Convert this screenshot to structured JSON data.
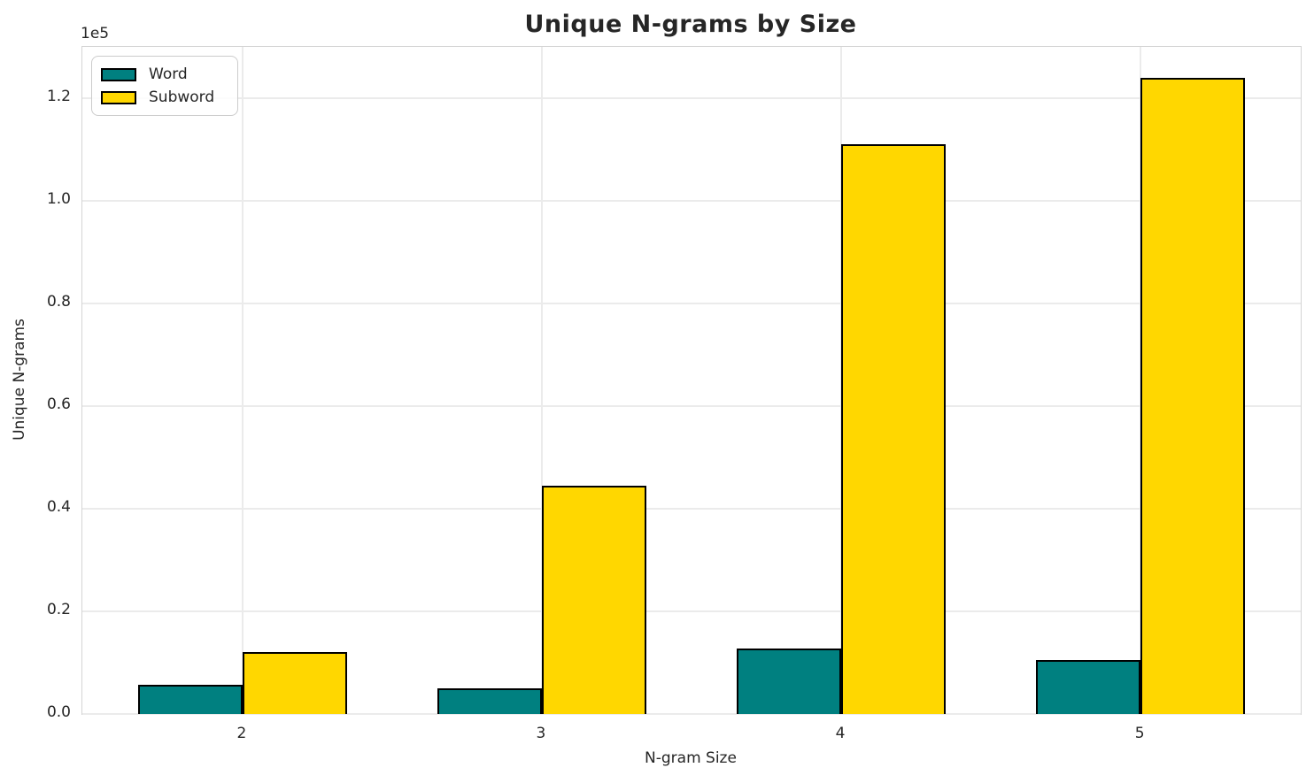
{
  "figure": {
    "background": "#ffffff",
    "text_color": "#262626",
    "spine_color": "#d4d4d4",
    "gridline_color": "#ebebeb"
  },
  "chart_data": {
    "type": "bar",
    "title": "Unique N-grams by Size",
    "xlabel": "N-gram Size",
    "ylabel": "Unique N-grams",
    "y_offset_text": "1e5",
    "categories": [
      "2",
      "3",
      "4",
      "5"
    ],
    "series": [
      {
        "name": "Word",
        "color": "#008080",
        "values": [
          5700,
          5000,
          12700,
          10500
        ]
      },
      {
        "name": "Subword",
        "color": "#FFD700",
        "values": [
          12100,
          44400,
          111000,
          124000
        ]
      }
    ],
    "bar_edge_color": "#000000",
    "bar_width": 0.35,
    "xlim": [
      1.465,
      5.535
    ],
    "ylim": [
      0,
      130000
    ],
    "yticks": [
      0,
      20000,
      40000,
      60000,
      80000,
      100000,
      120000
    ],
    "ytick_labels": [
      "0.0",
      "0.2",
      "0.4",
      "0.6",
      "0.8",
      "1.0",
      "1.2"
    ],
    "grid": true,
    "legend_position": "upper left"
  }
}
